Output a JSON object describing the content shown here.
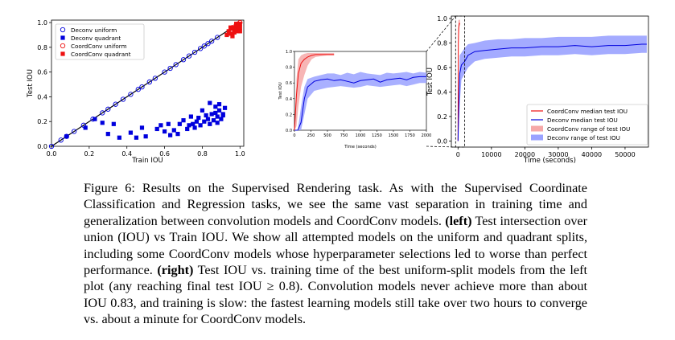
{
  "figure": {
    "colors": {
      "deconv": "#0000dd",
      "coordconv": "#ee1111",
      "deconv_band": "#9aa2ff",
      "coordconv_band": "#f6a8a8",
      "axis": "#000000"
    }
  },
  "chart_data": [
    {
      "id": "left",
      "type": "scatter",
      "xlabel": "Train IOU",
      "ylabel": "Test IOU",
      "xlim": [
        0.0,
        1.02
      ],
      "ylim": [
        0.0,
        1.02
      ],
      "xticks": [
        "0.0",
        "0.2",
        "0.4",
        "0.6",
        "0.8",
        "1.0"
      ],
      "yticks": [
        "0.0",
        "0.2",
        "0.4",
        "0.6",
        "0.8",
        "1.0"
      ],
      "legend_position": "top-left",
      "reference_line": [
        [
          0,
          0
        ],
        [
          1,
          1
        ]
      ],
      "series": [
        {
          "name": "Deconv uniform",
          "marker": "open-circle",
          "color": "#0000dd",
          "points": [
            [
              0.0,
              0.0
            ],
            [
              0.05,
              0.05
            ],
            [
              0.08,
              0.08
            ],
            [
              0.12,
              0.12
            ],
            [
              0.17,
              0.17
            ],
            [
              0.22,
              0.22
            ],
            [
              0.27,
              0.27
            ],
            [
              0.3,
              0.3
            ],
            [
              0.34,
              0.34
            ],
            [
              0.38,
              0.38
            ],
            [
              0.42,
              0.42
            ],
            [
              0.46,
              0.46
            ],
            [
              0.48,
              0.48
            ],
            [
              0.52,
              0.52
            ],
            [
              0.55,
              0.55
            ],
            [
              0.6,
              0.6
            ],
            [
              0.63,
              0.63
            ],
            [
              0.66,
              0.66
            ],
            [
              0.7,
              0.7
            ],
            [
              0.73,
              0.73
            ],
            [
              0.76,
              0.76
            ],
            [
              0.79,
              0.79
            ],
            [
              0.81,
              0.81
            ],
            [
              0.83,
              0.83
            ],
            [
              0.85,
              0.85
            ],
            [
              0.88,
              0.88
            ]
          ]
        },
        {
          "name": "Deconv quadrant",
          "marker": "filled-square",
          "color": "#0000dd",
          "points": [
            [
              0.08,
              0.08
            ],
            [
              0.18,
              0.15
            ],
            [
              0.23,
              0.22
            ],
            [
              0.27,
              0.19
            ],
            [
              0.3,
              0.1
            ],
            [
              0.33,
              0.18
            ],
            [
              0.36,
              0.07
            ],
            [
              0.42,
              0.11
            ],
            [
              0.45,
              0.07
            ],
            [
              0.48,
              0.15
            ],
            [
              0.5,
              0.08
            ],
            [
              0.56,
              0.14
            ],
            [
              0.58,
              0.17
            ],
            [
              0.6,
              0.12
            ],
            [
              0.62,
              0.18
            ],
            [
              0.63,
              0.09
            ],
            [
              0.65,
              0.13
            ],
            [
              0.67,
              0.1
            ],
            [
              0.68,
              0.18
            ],
            [
              0.7,
              0.21
            ],
            [
              0.72,
              0.14
            ],
            [
              0.73,
              0.17
            ],
            [
              0.74,
              0.24
            ],
            [
              0.75,
              0.18
            ],
            [
              0.76,
              0.15
            ],
            [
              0.77,
              0.2
            ],
            [
              0.78,
              0.23
            ],
            [
              0.79,
              0.17
            ],
            [
              0.8,
              0.29
            ],
            [
              0.81,
              0.2
            ],
            [
              0.82,
              0.25
            ],
            [
              0.83,
              0.22
            ],
            [
              0.84,
              0.18
            ],
            [
              0.85,
              0.26
            ],
            [
              0.86,
              0.21
            ],
            [
              0.87,
              0.32
            ],
            [
              0.88,
              0.24
            ],
            [
              0.89,
              0.29
            ],
            [
              0.9,
              0.22
            ],
            [
              0.91,
              0.25
            ],
            [
              0.92,
              0.31
            ],
            [
              0.84,
              0.35
            ],
            [
              0.87,
              0.27
            ],
            [
              0.89,
              0.34
            ],
            [
              0.91,
              0.26
            ],
            [
              0.88,
              0.19
            ]
          ]
        },
        {
          "name": "CoordConv uniform",
          "marker": "open-circle",
          "color": "#ee1111",
          "points": [
            [
              0.96,
              0.96
            ],
            [
              0.98,
              0.98
            ],
            [
              0.99,
              0.99
            ],
            [
              1.0,
              1.0
            ]
          ]
        },
        {
          "name": "CoordConv quadrant",
          "marker": "filled-square",
          "color": "#ee1111",
          "points": [
            [
              0.93,
              0.9
            ],
            [
              0.94,
              0.93
            ],
            [
              0.95,
              0.91
            ],
            [
              0.96,
              0.95
            ],
            [
              0.97,
              0.92
            ],
            [
              0.97,
              0.96
            ],
            [
              0.98,
              0.94
            ],
            [
              0.99,
              0.97
            ],
            [
              0.99,
              0.93
            ],
            [
              1.0,
              0.99
            ],
            [
              1.0,
              0.96
            ],
            [
              0.95,
              0.96
            ],
            [
              0.96,
              0.89
            ],
            [
              0.98,
              0.99
            ],
            [
              1.0,
              0.93
            ]
          ]
        }
      ]
    },
    {
      "id": "middle-inset",
      "type": "line",
      "xlabel": "Time (seconds)",
      "ylabel": "Test IOU",
      "xlim": [
        0,
        2000
      ],
      "ylim": [
        0.0,
        1.0
      ],
      "xticks": [
        "0",
        "250",
        "500",
        "750",
        "1000",
        "1250",
        "1500",
        "1750",
        "2000"
      ],
      "yticks": [
        "0.0",
        "0.2",
        "0.4",
        "0.6",
        "0.8",
        "1.0"
      ],
      "series": [
        {
          "name": "CoordConv median test IOU",
          "color": "#ee1111",
          "x": [
            0,
            30,
            60,
            100,
            150,
            200,
            260,
            320,
            400,
            500,
            600
          ],
          "y": [
            0.0,
            0.45,
            0.72,
            0.85,
            0.9,
            0.93,
            0.95,
            0.96,
            0.96,
            0.96,
            0.96
          ],
          "range_low": [
            0.0,
            0.05,
            0.3,
            0.55,
            0.7,
            0.82,
            0.9,
            0.93,
            0.94,
            0.95,
            0.95
          ],
          "range_high": [
            0.0,
            0.65,
            0.9,
            0.95,
            0.97,
            0.98,
            0.98,
            0.98,
            0.98,
            0.98,
            0.98
          ]
        },
        {
          "name": "Deconv median test IOU",
          "color": "#0000dd",
          "x": [
            0,
            50,
            100,
            150,
            200,
            300,
            400,
            500,
            600,
            700,
            800,
            900,
            1000,
            1100,
            1200,
            1300,
            1400,
            1500,
            1600,
            1700,
            1800,
            1900,
            2000
          ],
          "y": [
            0.0,
            0.0,
            0.1,
            0.4,
            0.55,
            0.62,
            0.64,
            0.65,
            0.63,
            0.64,
            0.62,
            0.6,
            0.63,
            0.64,
            0.65,
            0.61,
            0.64,
            0.65,
            0.66,
            0.64,
            0.67,
            0.68,
            0.68
          ],
          "range_low": [
            0.0,
            0.0,
            0.0,
            0.2,
            0.4,
            0.5,
            0.52,
            0.54,
            0.55,
            0.56,
            0.55,
            0.54,
            0.55,
            0.57,
            0.56,
            0.55,
            0.56,
            0.57,
            0.58,
            0.56,
            0.58,
            0.6,
            0.6
          ],
          "range_high": [
            0.0,
            0.0,
            0.3,
            0.55,
            0.65,
            0.68,
            0.7,
            0.72,
            0.72,
            0.7,
            0.73,
            0.71,
            0.74,
            0.72,
            0.71,
            0.7,
            0.73,
            0.72,
            0.73,
            0.74,
            0.72,
            0.74,
            0.73
          ]
        }
      ]
    },
    {
      "id": "right",
      "type": "line",
      "xlabel": "Time (seconds)",
      "ylabel": "Test IOU",
      "xlim": [
        -2000,
        57000
      ],
      "ylim": [
        -0.05,
        1.02
      ],
      "xticks": [
        "0",
        "10000",
        "20000",
        "30000",
        "40000",
        "50000"
      ],
      "yticks": [
        "0.0",
        "0.2",
        "0.4",
        "0.6",
        "0.8",
        "1.0"
      ],
      "legend_position": "lower-right",
      "series": [
        {
          "name": "CoordConv median test IOU",
          "color": "#ee1111",
          "x": [
            0,
            100,
            200,
            400,
            600
          ],
          "y": [
            0.0,
            0.8,
            0.92,
            0.96,
            0.96
          ]
        },
        {
          "name": "Deconv median test IOU",
          "color": "#0000dd",
          "x": [
            0,
            500,
            1000,
            2000,
            3000,
            5000,
            8000,
            12000,
            16000,
            20000,
            25000,
            30000,
            35000,
            40000,
            45000,
            50000,
            55000,
            56500
          ],
          "y": [
            0.0,
            0.55,
            0.62,
            0.65,
            0.7,
            0.73,
            0.74,
            0.75,
            0.76,
            0.76,
            0.77,
            0.77,
            0.78,
            0.77,
            0.78,
            0.78,
            0.79,
            0.79
          ]
        },
        {
          "name": "CoordConv range of test IOU",
          "color": "#f6a8a8",
          "x": [
            0,
            100,
            200,
            400,
            600
          ],
          "low": [
            0.0,
            0.3,
            0.8,
            0.94,
            0.95
          ],
          "high": [
            0.0,
            0.98,
            0.99,
            0.99,
            0.99
          ]
        },
        {
          "name": "Deconv range of test IOU",
          "color": "#9aa2ff",
          "x": [
            0,
            500,
            1000,
            2000,
            3000,
            5000,
            8000,
            12000,
            16000,
            20000,
            25000,
            30000,
            35000,
            40000,
            45000,
            50000,
            55000,
            56500
          ],
          "low": [
            0.0,
            0.3,
            0.5,
            0.55,
            0.6,
            0.65,
            0.67,
            0.68,
            0.69,
            0.69,
            0.7,
            0.7,
            0.71,
            0.7,
            0.71,
            0.71,
            0.72,
            0.72
          ],
          "high": [
            0.0,
            0.7,
            0.72,
            0.76,
            0.79,
            0.8,
            0.82,
            0.83,
            0.83,
            0.84,
            0.84,
            0.85,
            0.85,
            0.85,
            0.86,
            0.86,
            0.86,
            0.86
          ]
        }
      ]
    }
  ],
  "caption": {
    "lead": "Figure 6:  Results on the Supervised Rendering task. As with the Supervised Coordinate Classification and Regression tasks, we see the same vast separation in training time and generalization between convolution models and CoordConv models.",
    "left_tag": "(left)",
    "left_text": "Test intersection over union (IOU) vs Train IOU. We show all attempted models on the uniform and quadrant splits, including some CoordConv models whose hyperparameter selections led to worse than perfect performance.",
    "right_tag": "(right)",
    "right_text": "Test IOU vs. training time of the best uniform-split models from the left plot (any reaching final test IOU ≥ 0.8). Convolution models never achieve more than about IOU 0.83, and training is slow: the fastest learning models still take over two hours to converge vs. about a minute for CoordConv models."
  }
}
